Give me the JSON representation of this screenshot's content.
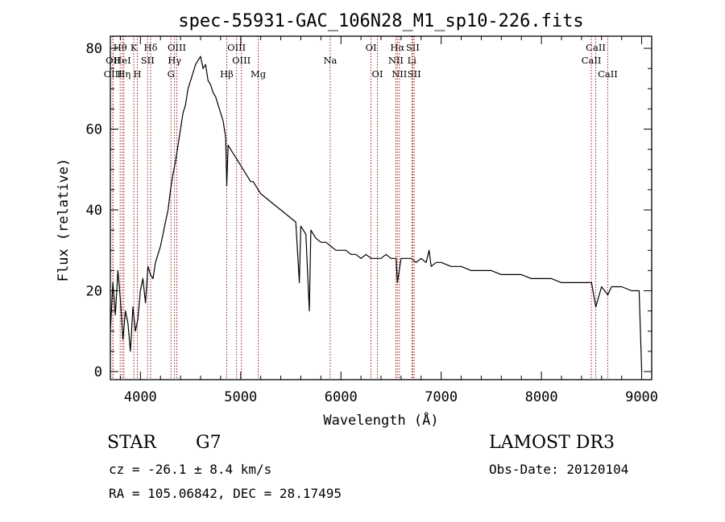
{
  "chart_data": {
    "type": "line",
    "title": "spec-55931-GAC_106N28_M1_sp10-226.fits",
    "xlabel": "Wavelength (Å)",
    "ylabel": "Flux (relative)",
    "xlim": [
      3700,
      9100
    ],
    "ylim": [
      -2,
      83
    ],
    "xticks": [
      4000,
      5000,
      6000,
      7000,
      8000,
      9000
    ],
    "yticks": [
      0,
      20,
      40,
      60,
      80
    ],
    "series": [
      {
        "name": "spectrum",
        "x": [
          3700,
          3725,
          3750,
          3775,
          3800,
          3825,
          3850,
          3875,
          3900,
          3925,
          3950,
          3975,
          4000,
          4025,
          4050,
          4075,
          4100,
          4125,
          4150,
          4175,
          4200,
          4225,
          4250,
          4275,
          4300,
          4325,
          4350,
          4375,
          4400,
          4425,
          4450,
          4475,
          4500,
          4525,
          4550,
          4575,
          4600,
          4625,
          4650,
          4675,
          4700,
          4725,
          4750,
          4775,
          4800,
          4825,
          4850,
          4861,
          4875,
          4900,
          4925,
          4950,
          4975,
          5000,
          5025,
          5050,
          5075,
          5100,
          5125,
          5150,
          5175,
          5200,
          5250,
          5300,
          5350,
          5400,
          5450,
          5500,
          5550,
          5585,
          5600,
          5650,
          5685,
          5700,
          5750,
          5800,
          5850,
          5900,
          5950,
          6000,
          6050,
          6100,
          6150,
          6200,
          6250,
          6300,
          6350,
          6400,
          6450,
          6500,
          6550,
          6563,
          6600,
          6650,
          6700,
          6750,
          6800,
          6850,
          6880,
          6900,
          6950,
          7000,
          7100,
          7200,
          7300,
          7400,
          7500,
          7600,
          7700,
          7800,
          7900,
          8000,
          8100,
          8200,
          8300,
          8400,
          8500,
          8542,
          8600,
          8662,
          8700,
          8800,
          8900,
          8950,
          8975,
          9000
        ],
        "y": [
          10,
          22,
          14,
          25,
          18,
          8,
          15,
          12,
          5,
          16,
          10,
          13,
          20,
          23,
          17,
          26,
          24,
          23,
          27,
          29,
          31,
          34,
          37,
          40,
          45,
          49,
          52,
          56,
          60,
          64,
          66,
          70,
          72,
          74,
          76,
          77,
          78,
          75,
          76,
          72,
          71,
          69,
          68,
          66,
          64,
          62,
          58,
          46,
          56,
          55,
          54,
          53,
          52,
          51,
          50,
          49,
          48,
          47,
          47,
          46,
          45,
          44,
          43,
          42,
          41,
          40,
          39,
          38,
          37,
          22,
          36,
          34,
          15,
          35,
          33,
          32,
          32,
          31,
          30,
          30,
          30,
          29,
          29,
          28,
          29,
          28,
          28,
          28,
          29,
          28,
          28,
          22,
          28,
          28,
          28,
          27,
          28,
          27,
          30,
          26,
          27,
          27,
          26,
          26,
          25,
          25,
          25,
          24,
          24,
          24,
          23,
          23,
          23,
          22,
          22,
          22,
          22,
          16,
          21,
          19,
          21,
          21,
          20,
          20,
          20,
          0
        ]
      }
    ],
    "spectral_lines": [
      {
        "label": "Hθ",
        "x": 3798,
        "row": 1
      },
      {
        "label": "OII",
        "x": 3727,
        "row": 2
      },
      {
        "label": "HeI",
        "x": 3820,
        "row": 2
      },
      {
        "label": "OIII",
        "x": 3726,
        "row": 3
      },
      {
        "label": "Hη",
        "x": 3835,
        "row": 3
      },
      {
        "label": "K",
        "x": 3934,
        "row": 1
      },
      {
        "label": "H",
        "x": 3969,
        "row": 3
      },
      {
        "label": "SII",
        "x": 4072,
        "row": 2
      },
      {
        "label": "Hδ",
        "x": 4102,
        "row": 1
      },
      {
        "label": "OIII",
        "x": 4363,
        "row": 1
      },
      {
        "label": "Hγ",
        "x": 4340,
        "row": 2
      },
      {
        "label": "G",
        "x": 4304,
        "row": 3
      },
      {
        "label": "Hβ",
        "x": 4861,
        "row": 3
      },
      {
        "label": "OIII",
        "x": 4959,
        "row": 1
      },
      {
        "label": "OIII",
        "x": 5007,
        "row": 2
      },
      {
        "label": "Mg",
        "x": 5175,
        "row": 3
      },
      {
        "label": "Na",
        "x": 5893,
        "row": 2
      },
      {
        "label": "OI",
        "x": 6300,
        "row": 1
      },
      {
        "label": "OI",
        "x": 6364,
        "row": 3
      },
      {
        "label": "Hα",
        "x": 6563,
        "row": 1
      },
      {
        "label": "NII",
        "x": 6548,
        "row": 2
      },
      {
        "label": "NII",
        "x": 6583,
        "row": 3
      },
      {
        "label": "SII",
        "x": 6716,
        "row": 1
      },
      {
        "label": "Li",
        "x": 6708,
        "row": 2
      },
      {
        "label": "SII",
        "x": 6731,
        "row": 3
      },
      {
        "label": "CaII",
        "x": 8542,
        "row": 1
      },
      {
        "label": "CaII",
        "x": 8498,
        "row": 2
      },
      {
        "label": "CaII",
        "x": 8662,
        "row": 3
      }
    ]
  },
  "info": {
    "object_type": "STAR",
    "subclass": "G7",
    "survey": "LAMOST DR3",
    "cz": "cz = -26.1 ± 8.4 km/s",
    "obs_date": "Obs-Date: 20120104",
    "coords": "RA = 105.06842, DEC =  28.17495"
  },
  "colors": {
    "line_marker": "#a01818",
    "spectrum": "#000000"
  }
}
